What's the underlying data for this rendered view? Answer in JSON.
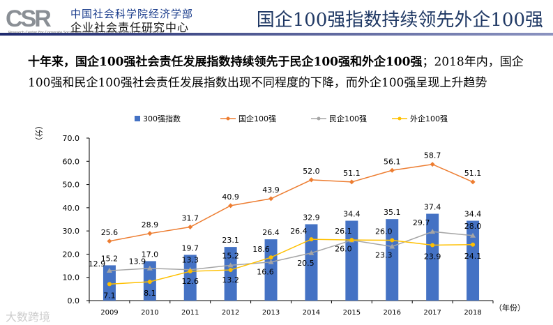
{
  "header": {
    "logo_csr": "CSR",
    "logo_cn1": "中国社会科学院经济学部",
    "logo_cn2": "企业社会责任研究中心",
    "logo_en": "Research Center For Corporate Social Responsibility Chinese Academy of Social Sciences",
    "title": "国企100强指数持续领先外企100强"
  },
  "subtitle": {
    "bold": "十年来，国企100强社会责任发展指数持续领先于民企100强和外企100强",
    "normal": "；2018年内，国企100强和民企100强社会责任发展指数出现不同程度的下降，而外企100强呈现上升趋势"
  },
  "watermark": "大数跨境",
  "chart_data": {
    "type": "bar+line",
    "ylabel": "（分）",
    "xlabel": "（年份）",
    "ylim": [
      0,
      70
    ],
    "yticks": [
      "0.0",
      "10.0",
      "20.0",
      "30.0",
      "40.0",
      "50.0",
      "60.0",
      "70.0"
    ],
    "categories": [
      "2009",
      "2010",
      "2011",
      "2012",
      "2013",
      "2014",
      "2015",
      "2016",
      "2017",
      "2018"
    ],
    "legend_position": "top",
    "series": [
      {
        "name": "300强指数",
        "kind": "bar",
        "color": "#4472c4",
        "values": [
          15.2,
          17.0,
          19.7,
          23.1,
          26.4,
          32.9,
          34.4,
          35.1,
          37.4,
          34.4
        ]
      },
      {
        "name": "国企100强",
        "kind": "line",
        "marker": "diamond",
        "color": "#ed7d31",
        "values": [
          25.6,
          28.9,
          31.7,
          40.9,
          43.9,
          52.0,
          51.1,
          56.1,
          58.7,
          51.1
        ]
      },
      {
        "name": "民企100强",
        "kind": "line",
        "marker": "triangle",
        "color": "#a5a5a5",
        "values": [
          12.9,
          13.9,
          13.3,
          15.2,
          16.6,
          20.5,
          26.0,
          23.3,
          29.7,
          28.0
        ]
      },
      {
        "name": "外企100强",
        "kind": "line",
        "marker": "circle",
        "color": "#ffc000",
        "values": [
          7.1,
          8.1,
          12.6,
          13.2,
          18.6,
          26.4,
          26.1,
          26.0,
          23.9,
          24.1
        ]
      }
    ]
  }
}
